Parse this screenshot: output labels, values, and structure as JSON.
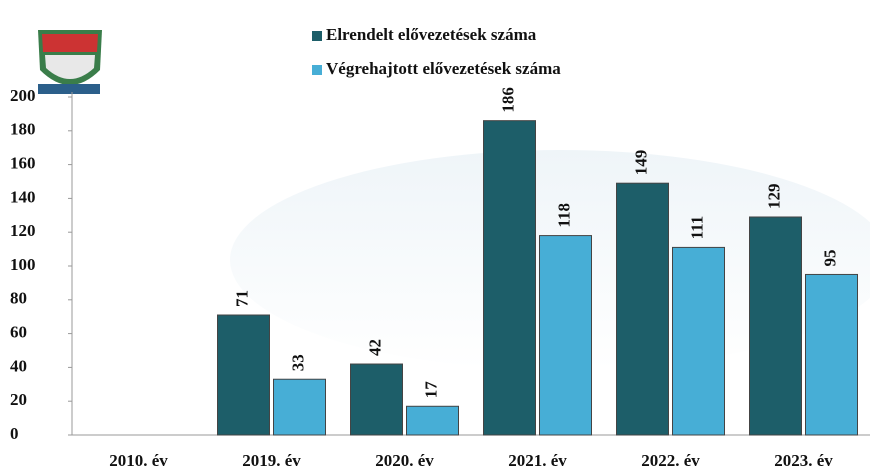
{
  "chart_data": {
    "type": "bar",
    "categories": [
      "2010. év",
      "2019. év",
      "2020. év",
      "2021. év",
      "2022. év",
      "2023. év"
    ],
    "series": [
      {
        "name": "Elrendelt elővezetések száma",
        "color": "#1d5e69",
        "values": [
          null,
          71,
          42,
          186,
          149,
          129
        ]
      },
      {
        "name": "Végrehajtott elővezetések száma",
        "color": "#47aed6",
        "values": [
          null,
          33,
          17,
          118,
          111,
          95
        ]
      }
    ],
    "ylim": [
      0,
      200
    ],
    "yticks": [
      0,
      20,
      40,
      60,
      80,
      100,
      120,
      140,
      160,
      180,
      200
    ],
    "grid": false,
    "legend": "top"
  }
}
